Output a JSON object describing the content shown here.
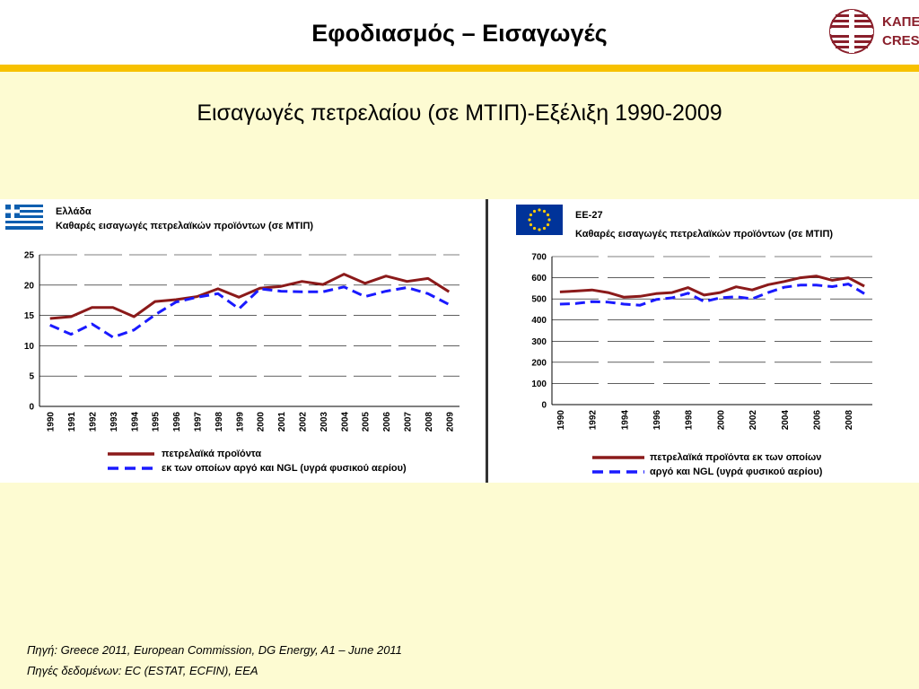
{
  "slide": {
    "title": "Εφοδιασμός – Εισαγωγές",
    "subtitle": "Εισαγωγές πετρελαίου (σε ΜΤΙΠ)-Εξέλιξη 1990-2009",
    "logo": {
      "line1": "ΚΑΠΕ",
      "line2": "CRES"
    },
    "source_line1": "Πηγή: Greece 2011, European Commission, DG Energy, A1 – June 2011",
    "source_line2": "Πηγές δεδομένων: EC (ESTAT, ECFIN), EEA"
  },
  "colors": {
    "series_total": "#8b1a1a",
    "series_crude": "#1a1aff",
    "accent_bar": "#f7c100",
    "background": "#fdfbd2"
  },
  "icons": [
    "greece-flag-icon",
    "eu-flag-icon",
    "cres-logo-icon"
  ],
  "chart_data": [
    {
      "type": "line",
      "title": "Ελλάδα",
      "subtitle": "Καθαρές εισαγωγές πετρελαϊκών προϊόντων (σε ΜΤΙΠ)",
      "x": [
        "1990",
        "1991",
        "1992",
        "1993",
        "1994",
        "1995",
        "1996",
        "1997",
        "1998",
        "1999",
        "2000",
        "2001",
        "2002",
        "2003",
        "2004",
        "2005",
        "2006",
        "2007",
        "2008",
        "2009"
      ],
      "xticks": [
        "1990",
        "1991",
        "1992",
        "1993",
        "1994",
        "1995",
        "1996",
        "1997",
        "1998",
        "1999",
        "2000",
        "2001",
        "2002",
        "2003",
        "2004",
        "2005",
        "2006",
        "2007",
        "2008",
        "2009"
      ],
      "ylim": [
        0,
        25
      ],
      "yticks": [
        0,
        5,
        10,
        15,
        20,
        25
      ],
      "grid": true,
      "legend_position": "bottom",
      "series": [
        {
          "name": "πετρελαϊκά προϊόντα",
          "style": "solid",
          "values": [
            14.5,
            14.8,
            16.3,
            16.3,
            14.8,
            17.3,
            17.6,
            18.1,
            19.4,
            18.0,
            19.5,
            19.8,
            20.6,
            20.1,
            21.8,
            20.3,
            21.5,
            20.6,
            21.1,
            18.9
          ]
        },
        {
          "name": "εκ των οποίων αργό και NGL (υγρά φυσικού αερίου)",
          "style": "dashed",
          "values": [
            13.4,
            11.9,
            13.6,
            11.4,
            12.6,
            15.1,
            17.2,
            18.0,
            18.6,
            16.1,
            19.4,
            19.0,
            18.9,
            18.9,
            19.7,
            18.1,
            19.0,
            19.6,
            18.6,
            16.8
          ]
        }
      ]
    },
    {
      "type": "line",
      "title": "ΕΕ-27",
      "subtitle": "Καθαρές εισαγωγές πετρελαϊκών προϊόντων (σε ΜΤΙΠ)",
      "x": [
        "1990",
        "1991",
        "1992",
        "1993",
        "1994",
        "1995",
        "1996",
        "1997",
        "1998",
        "1999",
        "2000",
        "2001",
        "2002",
        "2003",
        "2004",
        "2005",
        "2006",
        "2007",
        "2008",
        "2009"
      ],
      "xticks": [
        "1990",
        "1992",
        "1994",
        "1996",
        "1998",
        "2000",
        "2002",
        "2004",
        "2006",
        "2008"
      ],
      "ylim": [
        0,
        700
      ],
      "yticks": [
        0,
        100,
        200,
        300,
        400,
        500,
        600,
        700
      ],
      "grid": true,
      "legend_position": "bottom",
      "series": [
        {
          "name": "πετρελαϊκά προϊόντα εκ των οποίων",
          "style": "solid",
          "values": [
            533,
            537,
            542,
            530,
            508,
            512,
            525,
            530,
            553,
            518,
            530,
            557,
            542,
            567,
            582,
            600,
            608,
            588,
            600,
            560
          ]
        },
        {
          "name": "αργό και NGL (υγρά φυσικού αερίου)",
          "style": "dashed",
          "values": [
            475,
            478,
            487,
            485,
            475,
            470,
            497,
            505,
            527,
            487,
            505,
            510,
            500,
            530,
            555,
            565,
            565,
            558,
            570,
            525
          ]
        }
      ]
    }
  ]
}
